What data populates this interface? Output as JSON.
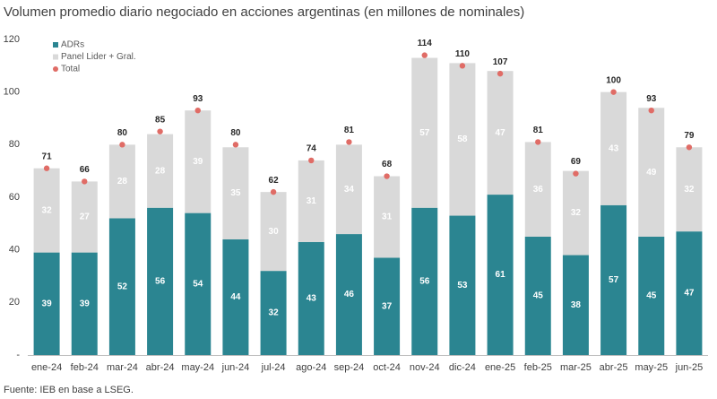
{
  "chart_data": {
    "type": "bar",
    "stacked": true,
    "title": "Volumen promedio diario negociado en acciones argentinas (en millones de nominales)",
    "source": "Fuente: IEB en base a LSEG.",
    "categories": [
      "ene-24",
      "feb-24",
      "mar-24",
      "abr-24",
      "may-24",
      "jun-24",
      "jul-24",
      "ago-24",
      "sep-24",
      "oct-24",
      "nov-24",
      "dic-24",
      "ene-25",
      "feb-25",
      "mar-25",
      "abr-25",
      "may-25",
      "jun-25"
    ],
    "series": [
      {
        "name": "ADRs",
        "color": "#2b8591",
        "mark": "bar",
        "values": [
          39,
          39,
          52,
          56,
          54,
          44,
          32,
          43,
          46,
          37,
          56,
          53,
          61,
          45,
          38,
          57,
          45,
          47
        ]
      },
      {
        "name": "Panel Lider + Gral.",
        "color": "#d9d9d9",
        "mark": "bar",
        "values": [
          32,
          27,
          28,
          28,
          39,
          35,
          30,
          31,
          34,
          31,
          57,
          58,
          47,
          36,
          32,
          43,
          49,
          32
        ]
      },
      {
        "name": "Total",
        "color": "#e06c66",
        "mark": "dot",
        "values": [
          71,
          66,
          80,
          85,
          93,
          80,
          62,
          74,
          81,
          68,
          114,
          110,
          107,
          81,
          69,
          100,
          93,
          79
        ]
      }
    ],
    "ylim": [
      0,
      120
    ],
    "yticks": [
      {
        "value": 0,
        "label": "-"
      },
      20,
      40,
      60,
      80,
      100,
      120
    ],
    "legend": "top-left"
  }
}
